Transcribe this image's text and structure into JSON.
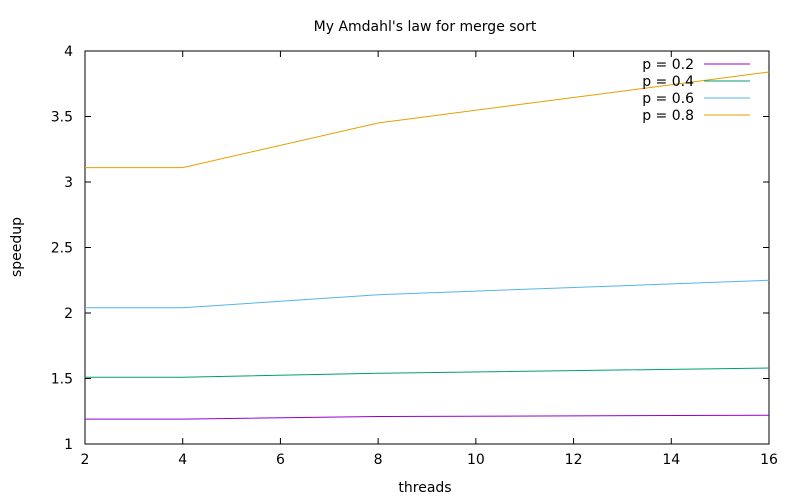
{
  "chart_data": {
    "type": "line",
    "title": "My Amdahl's law for merge sort",
    "xlabel": "threads",
    "ylabel": "speedup",
    "xlim": [
      2,
      16
    ],
    "ylim": [
      1,
      4
    ],
    "xticks": [
      2,
      4,
      6,
      8,
      10,
      12,
      14,
      16
    ],
    "yticks": [
      1,
      1.5,
      2,
      2.5,
      3,
      3.5,
      4
    ],
    "x": [
      2,
      4,
      8,
      16
    ],
    "grid": false,
    "legend_position": "top-right",
    "series": [
      {
        "name": "p = 0.2",
        "color": "#9400d3",
        "values": [
          1.19,
          1.19,
          1.21,
          1.22
        ]
      },
      {
        "name": "p = 0.4",
        "color": "#009e73",
        "values": [
          1.51,
          1.51,
          1.54,
          1.58
        ]
      },
      {
        "name": "p = 0.6",
        "color": "#56b4e9",
        "values": [
          2.04,
          2.04,
          2.14,
          2.25
        ]
      },
      {
        "name": "p = 0.8",
        "color": "#e69f00",
        "values": [
          3.11,
          3.11,
          3.45,
          3.84
        ]
      }
    ]
  }
}
